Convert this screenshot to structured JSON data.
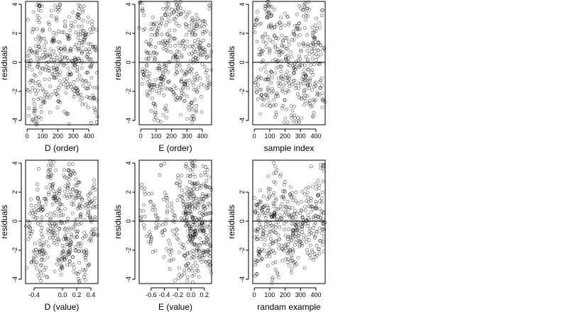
{
  "chart_data": [
    {
      "id": "p1",
      "type": "scatter",
      "title": "",
      "xlabel": "D (order)",
      "ylabel": "residuals",
      "xlim": [
        -10,
        460
      ],
      "ylim": [
        -4.3,
        4.2
      ],
      "xticks": [
        0,
        100,
        200,
        300,
        400
      ],
      "xticklabels": [
        "0",
        "100",
        "200",
        "300",
        "400"
      ],
      "yticks": [
        -4,
        -2,
        0,
        2,
        4
      ],
      "yticklabels": [
        "-4",
        "-2",
        "0",
        "2",
        "4"
      ],
      "hline": 0,
      "n_points": 450,
      "points": [
        [
          12,
          0.48
        ],
        [
          25,
          -1.22
        ],
        [
          38,
          2.31
        ],
        [
          47,
          -2.85
        ],
        [
          58,
          1.13
        ],
        [
          66,
          0.22
        ],
        [
          74,
          3.62
        ],
        [
          85,
          -0.74
        ],
        [
          96,
          1.65
        ],
        [
          107,
          -1.96
        ],
        [
          115,
          0.85
        ],
        [
          126,
          -0.31
        ],
        [
          138,
          2.74
        ],
        [
          146,
          -2.42
        ],
        [
          157,
          0.18
        ],
        [
          168,
          1.48
        ],
        [
          177,
          -1.05
        ],
        [
          188,
          3.02
        ],
        [
          196,
          -0.46
        ],
        [
          207,
          -2.71
        ],
        [
          218,
          0.92
        ],
        [
          227,
          2.06
        ],
        [
          238,
          -1.48
        ],
        [
          246,
          0.36
        ],
        [
          257,
          -3.58
        ],
        [
          266,
          1.74
        ],
        [
          277,
          -0.88
        ],
        [
          286,
          2.52
        ],
        [
          297,
          0.07
        ],
        [
          306,
          -1.94
        ],
        [
          318,
          1.21
        ],
        [
          326,
          -0.62
        ],
        [
          337,
          3.31
        ],
        [
          348,
          -2.23
        ],
        [
          356,
          0.62
        ],
        [
          366,
          1.93
        ],
        [
          377,
          -1.32
        ],
        [
          386,
          0.41
        ],
        [
          397,
          -3.12
        ],
        [
          406,
          2.27
        ],
        [
          418,
          -0.18
        ],
        [
          427,
          1.08
        ],
        [
          437,
          -2.48
        ],
        [
          446,
          0.81
        ],
        [
          452,
          -4.12
        ],
        [
          62,
          -3.85
        ],
        [
          44,
          -4.05
        ],
        [
          201,
          3.78
        ],
        [
          83,
          3.88
        ],
        [
          361,
          3.62
        ]
      ]
    },
    {
      "id": "p2",
      "type": "scatter",
      "title": "",
      "xlabel": "E (order)",
      "ylabel": "residuals",
      "xlim": [
        -10,
        460
      ],
      "ylim": [
        -4.3,
        4.2
      ],
      "xticks": [
        0,
        100,
        200,
        300,
        400
      ],
      "xticklabels": [
        "0",
        "100",
        "200",
        "300",
        "400"
      ],
      "yticks": [
        -4,
        -2,
        0,
        2,
        4
      ],
      "yticklabels": [
        "-4",
        "-2",
        "0",
        "2",
        "4"
      ],
      "hline": 0,
      "n_points": 450,
      "points": [
        [
          10,
          3.71
        ],
        [
          22,
          -0.85
        ],
        [
          35,
          1.42
        ],
        [
          46,
          -2.31
        ],
        [
          55,
          0.66
        ],
        [
          67,
          2.27
        ],
        [
          76,
          -1.53
        ],
        [
          87,
          0.12
        ],
        [
          95,
          -2.92
        ],
        [
          106,
          1.88
        ],
        [
          117,
          -0.42
        ],
        [
          127,
          2.58
        ],
        [
          136,
          -1.17
        ],
        [
          148,
          0.94
        ],
        [
          156,
          -3.18
        ],
        [
          167,
          1.35
        ],
        [
          178,
          -0.67
        ],
        [
          186,
          2.83
        ],
        [
          197,
          -1.88
        ],
        [
          208,
          0.27
        ],
        [
          216,
          1.62
        ],
        [
          228,
          -2.54
        ],
        [
          237,
          0.76
        ],
        [
          247,
          3.27
        ],
        [
          256,
          -0.23
        ],
        [
          267,
          -2.07
        ],
        [
          276,
          1.16
        ],
        [
          288,
          -1.36
        ],
        [
          296,
          2.41
        ],
        [
          307,
          -0.52
        ],
        [
          316,
          0.58
        ],
        [
          328,
          -2.78
        ],
        [
          336,
          1.97
        ],
        [
          347,
          -1.04
        ],
        [
          357,
          0.33
        ],
        [
          367,
          2.63
        ],
        [
          376,
          -1.72
        ],
        [
          388,
          0.87
        ],
        [
          396,
          -3.42
        ],
        [
          407,
          1.52
        ],
        [
          416,
          -0.29
        ],
        [
          428,
          2.16
        ],
        [
          436,
          -1.22
        ],
        [
          447,
          0.45
        ],
        [
          451,
          3.92
        ],
        [
          113,
          -4.02
        ],
        [
          232,
          3.98
        ],
        [
          342,
          -3.92
        ],
        [
          165,
          3.71
        ],
        [
          22,
          -0.85
        ]
      ]
    },
    {
      "id": "p3",
      "type": "scatter",
      "title": "",
      "xlabel": "sample index",
      "ylabel": "residuals",
      "xlim": [
        -10,
        460
      ],
      "ylim": [
        -4.3,
        4.2
      ],
      "xticks": [
        0,
        100,
        200,
        300,
        400
      ],
      "xticklabels": [
        "0",
        "100",
        "200",
        "300",
        "400"
      ],
      "yticks": [
        -4,
        -2,
        0,
        2,
        4
      ],
      "yticklabels": [
        "-4",
        "-2",
        "0",
        "2",
        "4"
      ],
      "hline": 0,
      "n_points": 450,
      "points": [
        [
          14,
          2.93
        ],
        [
          26,
          -1.57
        ],
        [
          37,
          0.52
        ],
        [
          48,
          -2.26
        ],
        [
          57,
          1.76
        ],
        [
          68,
          -0.34
        ],
        [
          77,
          3.58
        ],
        [
          88,
          -1.86
        ],
        [
          97,
          0.91
        ],
        [
          108,
          -0.62
        ],
        [
          116,
          2.36
        ],
        [
          127,
          -2.97
        ],
        [
          137,
          1.14
        ],
        [
          147,
          0.06
        ],
        [
          158,
          -1.41
        ],
        [
          167,
          2.71
        ],
        [
          178,
          -0.94
        ],
        [
          187,
          1.52
        ],
        [
          198,
          -2.63
        ],
        [
          206,
          0.38
        ],
        [
          217,
          3.12
        ],
        [
          226,
          -1.14
        ],
        [
          237,
          0.72
        ],
        [
          248,
          -3.33
        ],
        [
          257,
          1.97
        ],
        [
          268,
          -0.47
        ],
        [
          277,
          2.52
        ],
        [
          287,
          -1.77
        ],
        [
          298,
          0.23
        ],
        [
          307,
          -2.44
        ],
        [
          317,
          1.33
        ],
        [
          328,
          -0.79
        ],
        [
          338,
          3.44
        ],
        [
          347,
          -1.27
        ],
        [
          358,
          0.59
        ],
        [
          367,
          -3.04
        ],
        [
          378,
          1.83
        ],
        [
          387,
          -0.14
        ],
        [
          398,
          2.17
        ],
        [
          408,
          -2.06
        ],
        [
          417,
          0.83
        ],
        [
          426,
          -1.35
        ],
        [
          438,
          3.23
        ],
        [
          446,
          -2.53
        ],
        [
          452,
          1.02
        ],
        [
          192,
          -4.13
        ],
        [
          287,
          -4.03
        ],
        [
          84,
          3.93
        ],
        [
          327,
          3.81
        ],
        [
          92,
          3.88
        ]
      ]
    },
    {
      "id": "p4",
      "type": "scatter",
      "title": "",
      "xlabel": "D (value)",
      "ylabel": "residuals",
      "xlim": [
        -0.52,
        0.5
      ],
      "ylim": [
        -4.3,
        4.2
      ],
      "xticks": [
        -0.4,
        0.0,
        0.2,
        0.4
      ],
      "xticklabels": [
        "-0.4",
        "0.0",
        "0.2",
        "0.4"
      ],
      "yticks": [
        -4,
        -2,
        0,
        2,
        4
      ],
      "yticklabels": [
        "-4",
        "-2",
        "0",
        "2",
        "4"
      ],
      "hline": 0,
      "n_points": 450,
      "points": [
        [
          -0.47,
          -0.42
        ],
        [
          -0.44,
          1.08
        ],
        [
          -0.41,
          -2.78
        ],
        [
          -0.38,
          0.61
        ],
        [
          -0.35,
          2.18
        ],
        [
          -0.32,
          -1.36
        ],
        [
          -0.29,
          0.27
        ],
        [
          -0.26,
          -2.06
        ],
        [
          -0.23,
          1.52
        ],
        [
          -0.2,
          -0.83
        ],
        [
          -0.17,
          3.08
        ],
        [
          -0.14,
          -0.34
        ],
        [
          -0.11,
          1.88
        ],
        [
          -0.08,
          -1.62
        ],
        [
          -0.05,
          0.94
        ],
        [
          -0.02,
          -2.42
        ],
        [
          0.01,
          0.44
        ],
        [
          0.04,
          -1.06
        ],
        [
          0.07,
          2.27
        ],
        [
          0.1,
          -2.77
        ],
        [
          0.13,
          1.18
        ],
        [
          0.16,
          -0.55
        ],
        [
          0.19,
          2.06
        ],
        [
          0.22,
          -1.57
        ],
        [
          0.25,
          0.33
        ],
        [
          0.28,
          1.44
        ],
        [
          0.31,
          -1.07
        ],
        [
          0.34,
          -2.22
        ],
        [
          0.37,
          0.58
        ],
        [
          0.4,
          1.32
        ],
        [
          0.43,
          -0.66
        ],
        [
          0.46,
          2.18
        ],
        [
          0.0,
          -3.16
        ],
        [
          0.08,
          -2.08
        ],
        [
          0.1,
          2.02
        ],
        [
          -0.13,
          2.57
        ],
        [
          -0.28,
          -1.97
        ],
        [
          0.31,
          -3.42
        ],
        [
          -0.14,
          3.81
        ],
        [
          0.24,
          -4.12
        ],
        [
          -0.34,
          -3.72
        ],
        [
          0.09,
          3.52
        ],
        [
          0.43,
          -0.98
        ],
        [
          -0.1,
          1.67
        ],
        [
          0.0,
          -2.52
        ],
        [
          -0.22,
          -3.82
        ],
        [
          0.18,
          2.48
        ],
        [
          -0.3,
          0.93
        ],
        [
          0.03,
          -0.58
        ],
        [
          0.12,
          -1.53
        ]
      ]
    },
    {
      "id": "p5",
      "type": "scatter",
      "title": "",
      "xlabel": "E (value)",
      "ylabel": "residuals",
      "xlim": [
        -0.78,
        0.31
      ],
      "ylim": [
        -4.3,
        4.2
      ],
      "xticks": [
        -0.6,
        -0.4,
        -0.2,
        0.0,
        0.2
      ],
      "xticklabels": [
        "-0.6",
        "-0.4",
        "-0.2",
        "0.0",
        "0.2"
      ],
      "yticks": [
        -4,
        -2,
        0,
        2,
        4
      ],
      "yticklabels": [
        "-4",
        "-2",
        "0",
        "2",
        "4"
      ],
      "hline": 0,
      "n_points": 450,
      "points": [
        [
          -0.76,
          0.22
        ],
        [
          -0.7,
          2.02
        ],
        [
          -0.64,
          -1.42
        ],
        [
          -0.58,
          0.77
        ],
        [
          -0.52,
          -0.12
        ],
        [
          -0.47,
          3.18
        ],
        [
          -0.42,
          -0.97
        ],
        [
          -0.36,
          1.37
        ],
        [
          -0.31,
          -2.31
        ],
        [
          -0.26,
          0.42
        ],
        [
          -0.21,
          -0.62
        ],
        [
          -0.17,
          2.47
        ],
        [
          -0.13,
          -1.78
        ],
        [
          -0.1,
          0.93
        ],
        [
          -0.07,
          -3.04
        ],
        [
          -0.05,
          1.52
        ],
        [
          -0.02,
          -0.51
        ],
        [
          0.0,
          2.14
        ],
        [
          0.01,
          -1.37
        ],
        [
          0.03,
          0.28
        ],
        [
          0.05,
          -2.52
        ],
        [
          0.06,
          1.08
        ],
        [
          0.08,
          -0.84
        ],
        [
          0.1,
          2.64
        ],
        [
          0.11,
          -1.93
        ],
        [
          0.13,
          0.57
        ],
        [
          0.15,
          -0.27
        ],
        [
          0.17,
          1.72
        ],
        [
          0.19,
          -2.18
        ],
        [
          0.21,
          0.84
        ],
        [
          0.23,
          -1.13
        ],
        [
          0.25,
          2.37
        ],
        [
          0.27,
          -0.44
        ],
        [
          0.28,
          1.12
        ],
        [
          0.29,
          -1.88
        ],
        [
          -0.01,
          3.52
        ],
        [
          0.02,
          -3.78
        ],
        [
          0.0,
          -0.38
        ],
        [
          -0.01,
          0.63
        ],
        [
          0.02,
          -1.58
        ],
        [
          0.04,
          3.84
        ],
        [
          -0.15,
          -3.82
        ],
        [
          0.22,
          3.72
        ],
        [
          0.28,
          -3.02
        ],
        [
          -0.04,
          -2.92
        ],
        [
          0.01,
          1.88
        ],
        [
          0.0,
          -1.05
        ],
        [
          0.12,
          1.32
        ],
        [
          0.24,
          -1.6
        ],
        [
          -0.08,
          0.45
        ]
      ]
    },
    {
      "id": "p6",
      "type": "scatter",
      "title": "",
      "xlabel": "randam example",
      "ylabel": "residuals",
      "xlim": [
        -10,
        460
      ],
      "ylim": [
        -4.3,
        4.2
      ],
      "xticks": [
        0,
        100,
        200,
        300,
        400
      ],
      "xticklabels": [
        "0",
        "100",
        "200",
        "300",
        "400"
      ],
      "yticks": [
        -4,
        -2,
        0,
        2
      ],
      "yticklabels": [
        "-4",
        "-2",
        "0",
        "2"
      ],
      "hline": 0,
      "n_points": 450,
      "points": [
        [
          8,
          0.62
        ],
        [
          19,
          -1.08
        ],
        [
          31,
          1.36
        ],
        [
          42,
          -0.43
        ],
        [
          53,
          0.94
        ],
        [
          64,
          -2.02
        ],
        [
          75,
          0.23
        ],
        [
          86,
          1.52
        ],
        [
          97,
          -0.72
        ],
        [
          108,
          0.47
        ],
        [
          119,
          -1.53
        ],
        [
          130,
          1.18
        ],
        [
          141,
          -0.24
        ],
        [
          152,
          0.82
        ],
        [
          163,
          -1.22
        ],
        [
          174,
          0.16
        ],
        [
          185,
          2.07
        ],
        [
          196,
          -0.58
        ],
        [
          207,
          0.97
        ],
        [
          218,
          -1.82
        ],
        [
          229,
          0.33
        ],
        [
          240,
          1.64
        ],
        [
          251,
          -0.93
        ],
        [
          262,
          0.52
        ],
        [
          273,
          -0.38
        ],
        [
          284,
          1.22
        ],
        [
          295,
          -1.43
        ],
        [
          306,
          0.72
        ],
        [
          317,
          -0.14
        ],
        [
          328,
          1.86
        ],
        [
          339,
          -1.13
        ],
        [
          350,
          0.43
        ],
        [
          361,
          -2.34
        ],
        [
          372,
          1.03
        ],
        [
          383,
          -0.48
        ],
        [
          394,
          0.88
        ],
        [
          405,
          -1.68
        ],
        [
          416,
          0.27
        ],
        [
          427,
          1.38
        ],
        [
          438,
          -0.82
        ],
        [
          449,
          0.58
        ],
        [
          446,
          3.66
        ],
        [
          6,
          -3.02
        ],
        [
          128,
          3.28
        ],
        [
          254,
          -2.84
        ],
        [
          33,
          -2.12
        ],
        [
          404,
          2.22
        ],
        [
          120,
          -3.9
        ],
        [
          218,
          -2.62
        ],
        [
          78,
          -2.44
        ]
      ]
    }
  ]
}
